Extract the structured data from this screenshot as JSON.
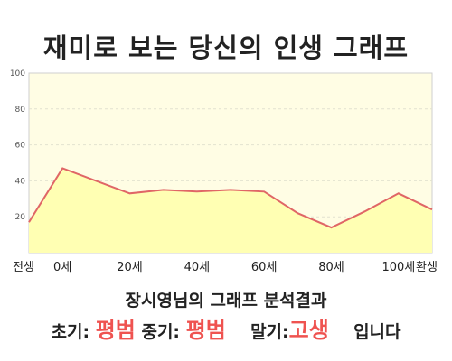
{
  "title": "재미로 보는 당신의 인생 그래프",
  "summary": "장시영님의 그래프 분석결과",
  "verdict": {
    "early_label": "초기:",
    "early_value": "평범",
    "mid_label": "중기:",
    "mid_value": "평범",
    "late_label": "말기:",
    "late_value": "고생",
    "suffix": "입니다"
  },
  "colors": {
    "plot_bg": "#fffde4",
    "line": "#e06666",
    "fill": "#ffffb3",
    "accent": "#ef5350"
  },
  "chart_data": {
    "type": "area",
    "title": "",
    "xlabel": "",
    "ylabel": "",
    "ylim": [
      0,
      100
    ],
    "grid": true,
    "y_ticks": [
      20,
      40,
      60,
      80,
      100
    ],
    "x_tick_labels": [
      "전생",
      "0세",
      "20세",
      "40세",
      "60세",
      "80세",
      "100세",
      "환생"
    ],
    "x": [
      "전생",
      "0세",
      "10세",
      "20세",
      "30세",
      "40세",
      "50세",
      "60세",
      "70세",
      "80세",
      "90세",
      "100세",
      "환생"
    ],
    "values": [
      17,
      47,
      40,
      33,
      35,
      34,
      35,
      34,
      22,
      14,
      23,
      33,
      24
    ]
  }
}
